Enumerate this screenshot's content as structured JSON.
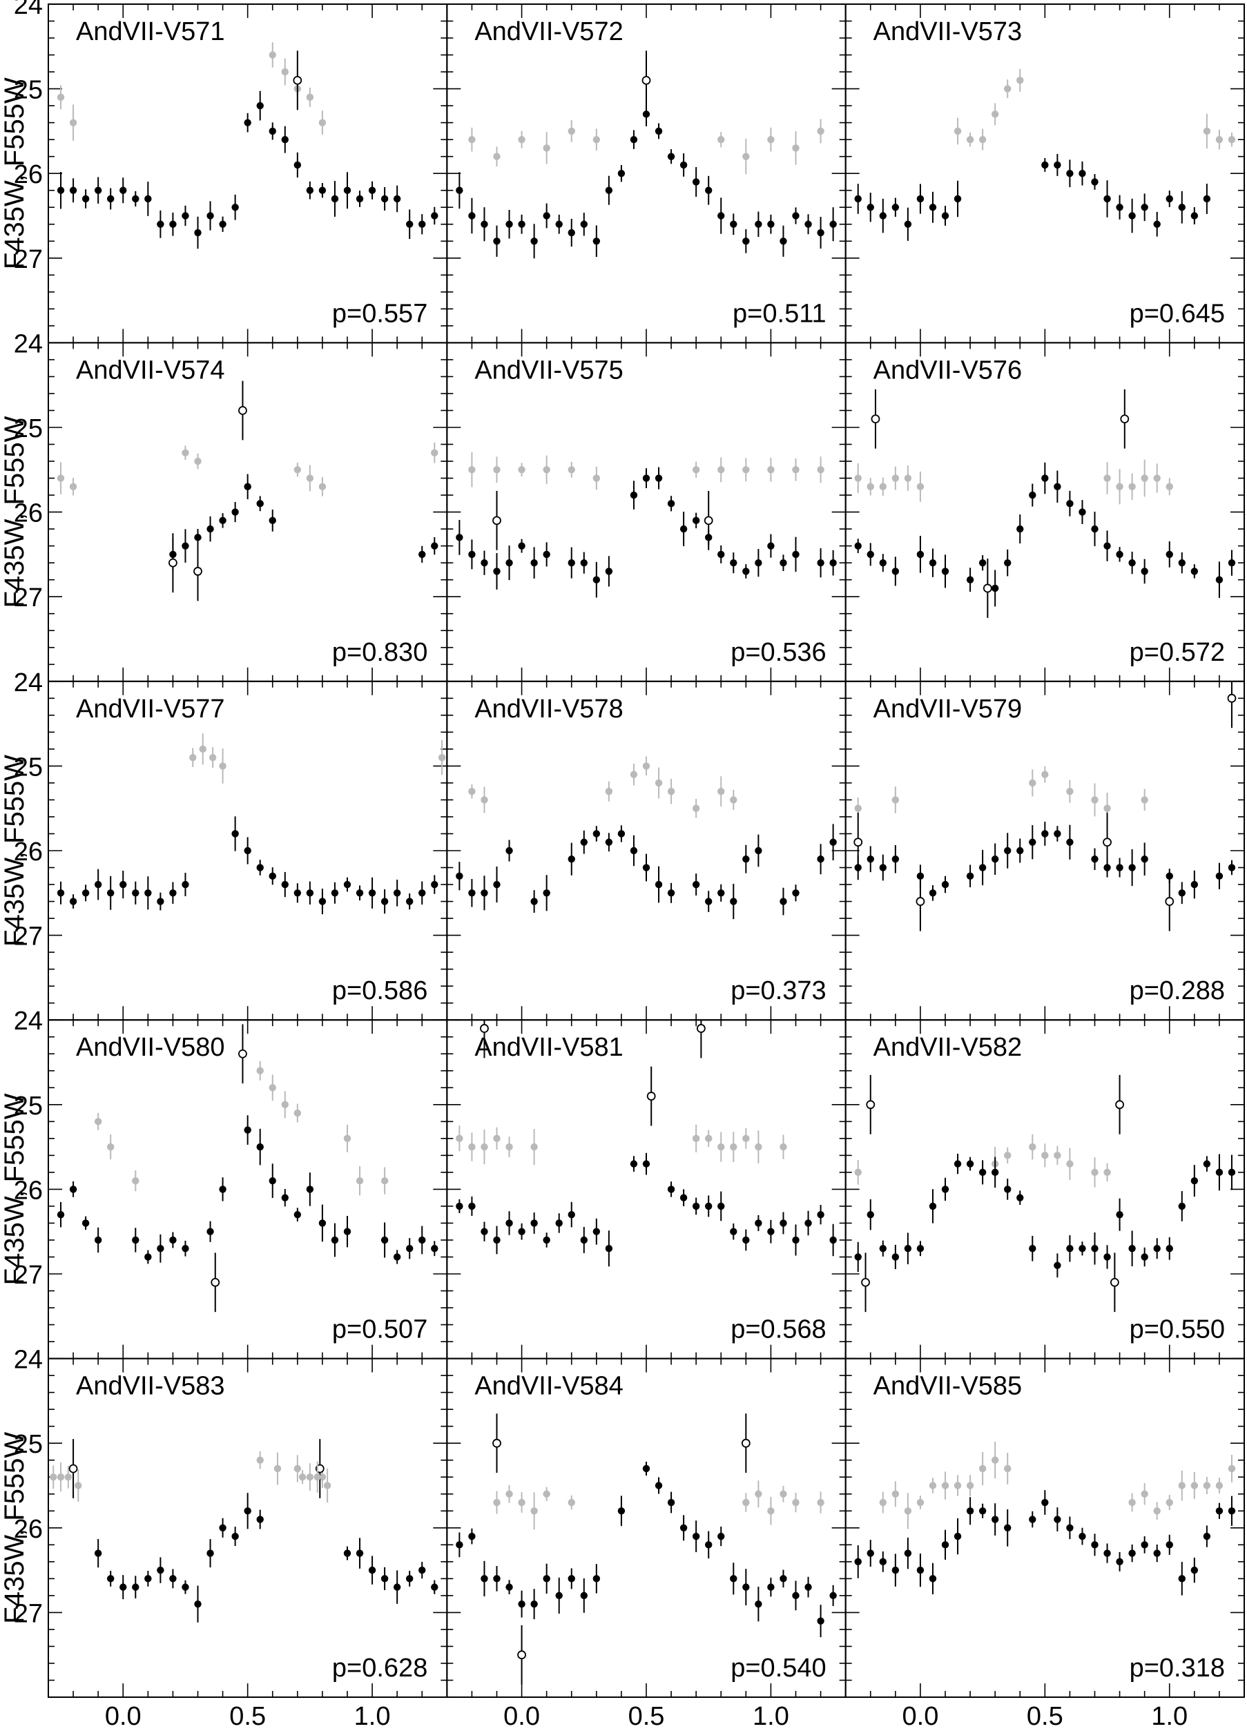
{
  "figure": {
    "ylabel": "F435W, F555W",
    "xlabel": "Phase",
    "colors": {
      "black_band": "#000000",
      "gray_band": "#b9b9b9",
      "frame": "#000000"
    }
  },
  "axes": {
    "x_range": [
      -0.3,
      1.3
    ],
    "x_ticks": [
      0.0,
      0.5,
      1.0
    ],
    "x_tick_labels": [
      "0.0",
      "0.5",
      "1.0"
    ],
    "y_range": [
      24.0,
      28.0
    ],
    "y_inverted": true,
    "y_ticks": [
      24,
      25,
      26,
      27
    ],
    "y_tick_labels": [
      "24",
      "25",
      "26",
      "27"
    ]
  },
  "chart_data": [
    {
      "type": "scatter",
      "name": "AndVII-V571",
      "period_label": "p=0.557",
      "black": {
        "phase": [
          0.0,
          0.05,
          0.1,
          0.15,
          0.2,
          0.25,
          0.3,
          0.35,
          0.4,
          0.45,
          0.5,
          0.55,
          0.6,
          0.65,
          0.7,
          0.75,
          0.8,
          0.85,
          0.9,
          0.95
        ],
        "mag": [
          26.2,
          26.3,
          26.3,
          26.6,
          26.6,
          26.5,
          26.7,
          26.5,
          26.6,
          26.4,
          25.4,
          25.2,
          25.5,
          25.6,
          25.9,
          26.2,
          26.2,
          26.3,
          26.2,
          26.3
        ]
      },
      "gray": {
        "phase": [
          0.6,
          0.65,
          0.7,
          0.75,
          0.8
        ],
        "mag": [
          24.6,
          24.8,
          25.0,
          25.1,
          25.4
        ]
      },
      "open": {
        "phase": [
          0.7
        ],
        "mag": [
          24.9
        ]
      }
    },
    {
      "type": "scatter",
      "name": "AndVII-V572",
      "period_label": "p=0.511",
      "black": {
        "phase": [
          0.0,
          0.05,
          0.1,
          0.15,
          0.2,
          0.25,
          0.3,
          0.35,
          0.4,
          0.45,
          0.5,
          0.55,
          0.6,
          0.65,
          0.7,
          0.75,
          0.8,
          0.85,
          0.9,
          0.95
        ],
        "mag": [
          26.6,
          26.8,
          26.5,
          26.6,
          26.7,
          26.6,
          26.8,
          26.2,
          26.0,
          25.6,
          25.3,
          25.5,
          25.8,
          25.9,
          26.1,
          26.2,
          26.5,
          26.6,
          26.8,
          26.6
        ]
      },
      "gray": {
        "phase": [
          0.0,
          0.1,
          0.2,
          0.3,
          0.8,
          0.9
        ],
        "mag": [
          25.6,
          25.7,
          25.5,
          25.6,
          25.6,
          25.8
        ]
      },
      "open": {
        "phase": [
          0.5
        ],
        "mag": [
          24.9
        ]
      }
    },
    {
      "type": "scatter",
      "name": "AndVII-V573",
      "period_label": "p=0.645",
      "black": {
        "phase": [
          0.0,
          0.05,
          0.1,
          0.15,
          0.5,
          0.55,
          0.6,
          0.65,
          0.7,
          0.75,
          0.8,
          0.85,
          0.9,
          0.95,
          1.0,
          1.05
        ],
        "mag": [
          26.3,
          26.4,
          26.5,
          26.3,
          25.9,
          25.9,
          26.0,
          26.0,
          26.1,
          26.3,
          26.4,
          26.5,
          26.4,
          26.6,
          26.3,
          26.4
        ]
      },
      "gray": {
        "phase": [
          0.15,
          0.2,
          0.25,
          0.3,
          0.35,
          0.4
        ],
        "mag": [
          25.5,
          25.6,
          25.6,
          25.3,
          25.0,
          24.9
        ]
      },
      "open": {
        "phase": [],
        "mag": []
      }
    },
    {
      "type": "scatter",
      "name": "AndVII-V574",
      "period_label": "p=0.830",
      "black": {
        "phase": [
          0.2,
          0.25,
          0.3,
          0.35,
          0.4,
          0.45,
          0.5,
          0.55,
          0.6
        ],
        "mag": [
          26.5,
          26.4,
          26.3,
          26.2,
          26.1,
          26.0,
          25.7,
          25.9,
          26.1
        ]
      },
      "gray": {
        "phase": [
          -0.2,
          0.25,
          0.3,
          0.7,
          0.75
        ],
        "mag": [
          25.7,
          25.3,
          25.4,
          25.5,
          25.6
        ]
      },
      "open": {
        "phase": [
          0.48,
          0.2,
          0.3
        ],
        "mag": [
          24.8,
          26.6,
          26.7
        ]
      }
    },
    {
      "type": "scatter",
      "name": "AndVII-V575",
      "period_label": "p=0.536",
      "black": {
        "phase": [
          0.0,
          0.05,
          0.1,
          0.2,
          0.25,
          0.3,
          0.35,
          0.45,
          0.5,
          0.55,
          0.6,
          0.65,
          0.7,
          0.75,
          0.8,
          0.85,
          0.9,
          0.95
        ],
        "mag": [
          26.4,
          26.6,
          26.5,
          26.6,
          26.6,
          26.8,
          26.7,
          25.8,
          25.6,
          25.6,
          25.9,
          26.2,
          26.1,
          26.3,
          26.5,
          26.6,
          26.7,
          26.6
        ]
      },
      "gray": {
        "phase": [
          0.0,
          0.1,
          0.2,
          0.3,
          0.7,
          0.8,
          0.9
        ],
        "mag": [
          25.5,
          25.5,
          25.5,
          25.6,
          25.5,
          25.5,
          25.5
        ]
      },
      "open": {
        "phase": [
          -0.1,
          0.75
        ],
        "mag": [
          26.1,
          26.1
        ]
      }
    },
    {
      "type": "scatter",
      "name": "AndVII-V576",
      "period_label": "p=0.572",
      "black": {
        "phase": [
          0.0,
          0.05,
          0.1,
          0.2,
          0.25,
          0.3,
          0.35,
          0.4,
          0.45,
          0.5,
          0.55,
          0.6,
          0.65,
          0.7,
          0.75,
          0.8,
          0.85,
          0.9
        ],
        "mag": [
          26.5,
          26.6,
          26.7,
          26.8,
          26.6,
          26.9,
          26.6,
          26.2,
          25.8,
          25.6,
          25.7,
          25.9,
          26.0,
          26.2,
          26.4,
          26.5,
          26.6,
          26.7
        ]
      },
      "gray": {
        "phase": [
          -0.1,
          -0.05,
          0.0,
          0.75,
          0.8,
          0.85
        ],
        "mag": [
          25.6,
          25.6,
          25.7,
          25.6,
          25.7,
          25.7
        ]
      },
      "open": {
        "phase": [
          -0.18,
          0.82,
          0.27
        ],
        "mag": [
          24.9,
          24.9,
          26.9
        ]
      }
    },
    {
      "type": "scatter",
      "name": "AndVII-V577",
      "period_label": "p=0.586",
      "black": {
        "phase": [
          0.0,
          0.05,
          0.1,
          0.15,
          0.2,
          0.25,
          0.45,
          0.5,
          0.55,
          0.6,
          0.65,
          0.7,
          0.75,
          0.8,
          0.85,
          0.9,
          0.95,
          1.0,
          1.05,
          1.1
        ],
        "mag": [
          26.4,
          26.5,
          26.5,
          26.6,
          26.5,
          26.4,
          25.8,
          26.0,
          26.2,
          26.3,
          26.4,
          26.5,
          26.5,
          26.6,
          26.5,
          26.4,
          26.5,
          26.5,
          26.6,
          26.5
        ]
      },
      "gray": {
        "phase": [
          0.28,
          0.32,
          0.36,
          0.4
        ],
        "mag": [
          24.9,
          24.8,
          24.9,
          25.0
        ]
      },
      "open": {
        "phase": [],
        "mag": []
      }
    },
    {
      "type": "scatter",
      "name": "AndVII-V578",
      "period_label": "p=0.373",
      "black": {
        "phase": [
          -0.25,
          -0.15,
          -0.1,
          0.05,
          0.1,
          0.2,
          0.25,
          0.3,
          0.35,
          0.4,
          0.45,
          0.5,
          0.55,
          0.6,
          0.7,
          0.75,
          0.8,
          0.85,
          0.9,
          0.95
        ],
        "mag": [
          26.3,
          26.5,
          26.4,
          26.6,
          26.5,
          26.1,
          25.9,
          25.8,
          25.9,
          25.8,
          26.0,
          26.2,
          26.4,
          26.5,
          26.4,
          26.6,
          26.5,
          26.6,
          26.1,
          26.0
        ]
      },
      "gray": {
        "phase": [
          -0.2,
          -0.15,
          0.35,
          0.45,
          0.5,
          0.55,
          0.6,
          0.7
        ],
        "mag": [
          25.3,
          25.4,
          25.3,
          25.1,
          25.0,
          25.2,
          25.3,
          25.5
        ]
      },
      "open": {
        "phase": [],
        "mag": []
      }
    },
    {
      "type": "scatter",
      "name": "AndVII-V579",
      "period_label": "p=0.288",
      "black": {
        "phase": [
          -0.2,
          -0.15,
          -0.1,
          0.0,
          0.05,
          0.1,
          0.2,
          0.25,
          0.3,
          0.35,
          0.4,
          0.45,
          0.5,
          0.55,
          0.6,
          0.7,
          0.75,
          0.8,
          1.0,
          1.05
        ],
        "mag": [
          26.1,
          26.2,
          26.1,
          26.3,
          26.5,
          26.4,
          26.3,
          26.2,
          26.1,
          26.0,
          26.0,
          25.9,
          25.8,
          25.8,
          25.9,
          26.1,
          26.2,
          26.2,
          26.3,
          26.5
        ]
      },
      "gray": {
        "phase": [
          -0.25,
          -0.1,
          0.45,
          0.5,
          0.6,
          0.7,
          0.75
        ],
        "mag": [
          25.5,
          25.4,
          25.2,
          25.1,
          25.3,
          25.4,
          25.5
        ]
      },
      "open": {
        "phase": [
          -0.25,
          0.0,
          0.75,
          1.0,
          1.25
        ],
        "mag": [
          25.9,
          26.6,
          25.9,
          26.6,
          24.2
        ]
      }
    },
    {
      "type": "scatter",
      "name": "AndVII-V580",
      "period_label": "p=0.507",
      "black": {
        "phase": [
          -0.25,
          -0.2,
          -0.15,
          -0.1,
          0.05,
          0.1,
          0.15,
          0.2,
          0.25,
          0.35,
          0.4,
          0.5,
          0.55,
          0.6,
          0.65,
          0.7,
          0.75,
          0.8,
          0.85,
          0.9
        ],
        "mag": [
          26.3,
          26.0,
          26.4,
          26.6,
          26.6,
          26.8,
          26.7,
          26.6,
          26.7,
          26.5,
          26.0,
          25.3,
          25.5,
          25.9,
          26.1,
          26.3,
          26.0,
          26.4,
          26.6,
          26.5
        ]
      },
      "gray": {
        "phase": [
          -0.1,
          -0.05,
          0.05,
          0.55,
          0.6,
          0.65,
          0.7,
          0.9,
          0.95
        ],
        "mag": [
          25.2,
          25.5,
          25.9,
          24.6,
          24.8,
          25.0,
          25.1,
          25.4,
          25.9
        ]
      },
      "open": {
        "phase": [
          0.48,
          0.37
        ],
        "mag": [
          24.4,
          27.1
        ]
      }
    },
    {
      "type": "scatter",
      "name": "AndVII-V581",
      "period_label": "p=0.568",
      "black": {
        "phase": [
          -0.25,
          -0.2,
          0.0,
          0.05,
          0.1,
          0.15,
          0.2,
          0.25,
          0.3,
          0.35,
          0.45,
          0.5,
          0.6,
          0.65,
          0.7,
          0.75,
          0.85,
          0.9,
          0.95,
          1.0
        ],
        "mag": [
          26.2,
          26.2,
          26.5,
          26.4,
          26.6,
          26.4,
          26.3,
          26.6,
          26.5,
          26.7,
          25.7,
          25.7,
          26.0,
          26.1,
          26.2,
          26.2,
          26.5,
          26.6,
          26.4,
          26.5
        ]
      },
      "gray": {
        "phase": [
          -0.2,
          -0.1,
          -0.05,
          0.05,
          0.7,
          0.75,
          0.8,
          0.85
        ],
        "mag": [
          25.5,
          25.4,
          25.5,
          25.5,
          25.4,
          25.4,
          25.5,
          25.5
        ]
      },
      "open": {
        "phase": [
          0.52,
          -0.15,
          0.72
        ],
        "mag": [
          24.9,
          24.1,
          24.1
        ]
      }
    },
    {
      "type": "scatter",
      "name": "AndVII-V582",
      "period_label": "p=0.550",
      "black": {
        "phase": [
          -0.2,
          -0.15,
          -0.1,
          -0.05,
          0.0,
          0.1,
          0.15,
          0.2,
          0.25,
          0.3,
          0.35,
          0.4,
          0.45,
          0.55,
          0.6,
          0.65,
          0.7,
          0.75,
          1.05,
          1.1,
          1.15,
          1.2
        ],
        "mag": [
          26.3,
          26.7,
          26.8,
          26.7,
          26.7,
          26.0,
          25.7,
          25.7,
          25.8,
          25.8,
          26.0,
          26.1,
          26.7,
          26.9,
          26.7,
          26.7,
          26.7,
          26.8,
          26.2,
          25.9,
          25.7,
          25.8
        ]
      },
      "gray": {
        "phase": [
          -0.25,
          0.3,
          0.35,
          0.45,
          0.5,
          0.55,
          0.6,
          0.7,
          0.75
        ],
        "mag": [
          25.8,
          25.7,
          25.6,
          25.5,
          25.6,
          25.6,
          25.7,
          25.8,
          25.8
        ]
      },
      "open": {
        "phase": [
          -0.2,
          0.8,
          -0.22,
          0.78
        ],
        "mag": [
          25.0,
          25.0,
          27.1,
          27.1
        ]
      }
    },
    {
      "type": "scatter",
      "name": "AndVII-V583",
      "period_label": "p=0.628",
      "black": {
        "phase": [
          -0.1,
          -0.05,
          0.0,
          0.05,
          0.1,
          0.15,
          0.2,
          0.25,
          0.3,
          0.35,
          0.4,
          0.45,
          0.5,
          0.55,
          0.95,
          1.0,
          1.05,
          1.1,
          1.15,
          1.2
        ],
        "mag": [
          26.3,
          26.6,
          26.7,
          26.7,
          26.6,
          26.5,
          26.6,
          26.7,
          26.9,
          26.3,
          26.0,
          26.1,
          25.8,
          25.9,
          26.3,
          26.5,
          26.6,
          26.7,
          26.6,
          26.5
        ]
      },
      "gray": {
        "phase": [
          -0.28,
          -0.22,
          -0.18,
          0.55,
          0.62,
          0.7,
          0.75,
          0.8
        ],
        "mag": [
          25.4,
          25.4,
          25.5,
          25.2,
          25.3,
          25.3,
          25.4,
          25.4
        ]
      },
      "open": {
        "phase": [
          -0.2,
          0.79
        ],
        "mag": [
          25.3,
          25.3
        ]
      }
    },
    {
      "type": "scatter",
      "name": "AndVII-V584",
      "period_label": "p=0.540",
      "black": {
        "phase": [
          -0.25,
          -0.2,
          -0.1,
          -0.05,
          0.0,
          0.05,
          0.1,
          0.15,
          0.2,
          0.25,
          0.3,
          0.4,
          0.5,
          0.55,
          0.6,
          0.65,
          0.7,
          0.75,
          0.85,
          0.9,
          0.95,
          1.0,
          1.05,
          1.1,
          1.15,
          1.2
        ],
        "mag": [
          26.2,
          26.1,
          26.6,
          26.7,
          26.9,
          26.9,
          26.6,
          26.8,
          26.6,
          26.8,
          26.6,
          25.8,
          25.3,
          25.5,
          25.7,
          26.0,
          26.1,
          26.2,
          26.6,
          26.7,
          26.9,
          26.7,
          26.6,
          26.8,
          26.7,
          27.1
        ]
      },
      "gray": {
        "phase": [
          -0.05,
          0.0,
          0.05,
          0.1,
          0.2,
          0.9,
          0.95,
          1.0,
          1.05,
          1.1
        ],
        "mag": [
          25.6,
          25.7,
          25.8,
          25.6,
          25.7,
          25.7,
          25.6,
          25.8,
          25.6,
          25.7
        ]
      },
      "open": {
        "phase": [
          -0.1,
          0.9,
          0.0
        ],
        "mag": [
          25.0,
          25.0,
          27.5
        ]
      }
    },
    {
      "type": "scatter",
      "name": "AndVII-V585",
      "period_label": "p=0.318",
      "black": {
        "phase": [
          -0.3,
          -0.25,
          -0.2,
          -0.15,
          -0.1,
          -0.05,
          0.0,
          0.05,
          0.1,
          0.2,
          0.25,
          0.3,
          0.35,
          0.45,
          0.5,
          0.55,
          0.6,
          0.65,
          0.7,
          0.75,
          0.8,
          0.85,
          0.9,
          0.95,
          1.0,
          1.1,
          1.15,
          1.2,
          1.25
        ],
        "mag": [
          26.2,
          26.4,
          26.3,
          26.4,
          26.5,
          26.3,
          26.5,
          26.6,
          26.2,
          25.8,
          25.8,
          25.9,
          26.0,
          25.9,
          25.7,
          25.9,
          26.0,
          26.1,
          26.2,
          26.3,
          26.4,
          26.3,
          26.2,
          26.3,
          26.2,
          26.5,
          26.1,
          25.8,
          25.8
        ]
      },
      "gray": {
        "phase": [
          -0.05,
          0.0,
          0.15,
          0.2,
          0.25,
          0.3,
          0.35,
          0.85,
          0.9,
          1.05,
          1.1
        ],
        "mag": [
          25.8,
          25.7,
          25.5,
          25.5,
          25.3,
          25.2,
          25.3,
          25.7,
          25.6,
          25.5,
          25.5
        ]
      },
      "open": {
        "phase": [],
        "mag": []
      }
    }
  ]
}
